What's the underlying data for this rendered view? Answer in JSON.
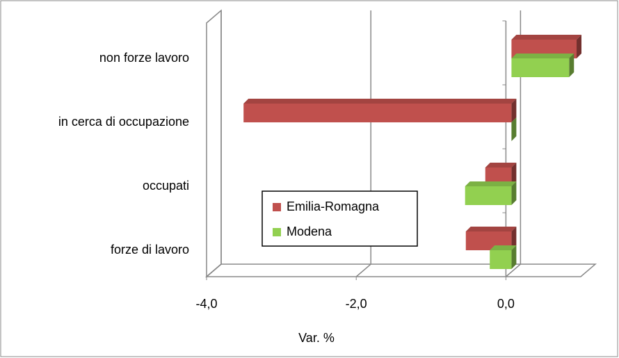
{
  "chart_data": {
    "type": "bar",
    "orientation": "horizontal",
    "categories": [
      "non forze lavoro",
      "in cerca di occupazione",
      "occupati",
      "forze di lavoro"
    ],
    "series": [
      {
        "name": "Emilia-Romagna",
        "color": "#c0504d",
        "values": [
          0.87,
          -3.58,
          -0.35,
          -0.61
        ]
      },
      {
        "name": "Modena",
        "color": "#92d050",
        "values": [
          0.77,
          0.0,
          -0.62,
          -0.29
        ]
      }
    ],
    "xlim": [
      -4,
      1
    ],
    "xticks": [
      {
        "value": -4,
        "label": "-4,0"
      },
      {
        "value": -2,
        "label": "-2,0"
      },
      {
        "value": 0,
        "label": "0,0"
      }
    ],
    "xlabel": "Var. %",
    "grid": true
  }
}
